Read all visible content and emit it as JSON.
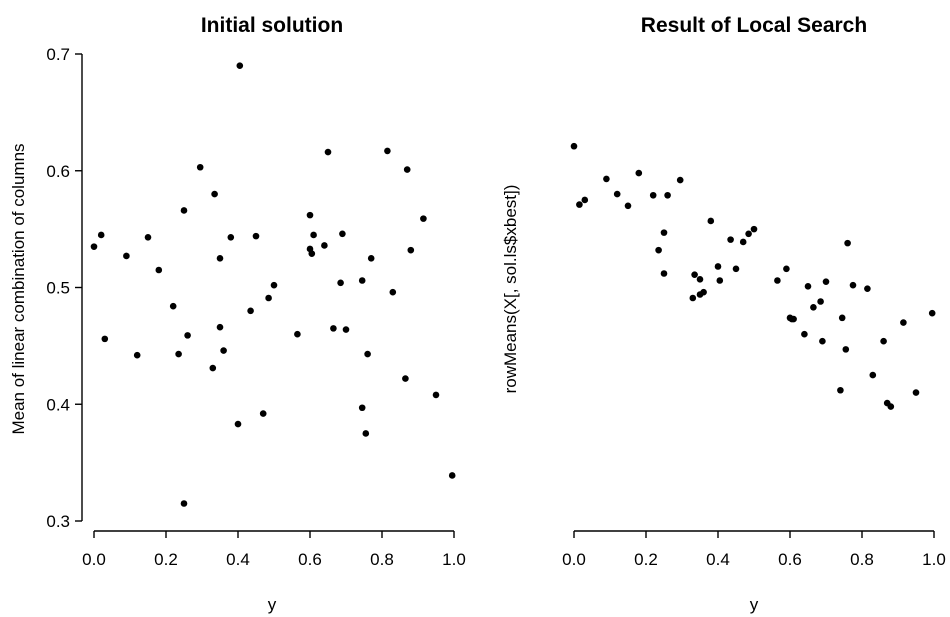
{
  "chart_data": [
    {
      "type": "scatter",
      "title": "Initial solution",
      "xlabel": "y",
      "ylabel": "Mean of linear combination of columns",
      "xlim": [
        0.0,
        1.0
      ],
      "ylim": [
        0.3,
        0.7
      ],
      "xticks": [
        "0.0",
        "0.2",
        "0.4",
        "0.6",
        "0.8",
        "1.0"
      ],
      "yticks": [
        "0.3",
        "0.4",
        "0.5",
        "0.6",
        "0.7"
      ],
      "show_y_axis": true,
      "grid": false,
      "points": [
        [
          0.0,
          0.535
        ],
        [
          0.02,
          0.545
        ],
        [
          0.03,
          0.456
        ],
        [
          0.09,
          0.527
        ],
        [
          0.12,
          0.442
        ],
        [
          0.15,
          0.543
        ],
        [
          0.18,
          0.515
        ],
        [
          0.22,
          0.484
        ],
        [
          0.235,
          0.443
        ],
        [
          0.25,
          0.566
        ],
        [
          0.25,
          0.315
        ],
        [
          0.26,
          0.459
        ],
        [
          0.295,
          0.603
        ],
        [
          0.33,
          0.431
        ],
        [
          0.335,
          0.58
        ],
        [
          0.35,
          0.466
        ],
        [
          0.35,
          0.525
        ],
        [
          0.36,
          0.446
        ],
        [
          0.38,
          0.543
        ],
        [
          0.4,
          0.383
        ],
        [
          0.405,
          0.69
        ],
        [
          0.435,
          0.48
        ],
        [
          0.45,
          0.544
        ],
        [
          0.47,
          0.392
        ],
        [
          0.485,
          0.491
        ],
        [
          0.5,
          0.502
        ],
        [
          0.565,
          0.46
        ],
        [
          0.6,
          0.533
        ],
        [
          0.6,
          0.562
        ],
        [
          0.605,
          0.529
        ],
        [
          0.61,
          0.545
        ],
        [
          0.64,
          0.536
        ],
        [
          0.65,
          0.616
        ],
        [
          0.665,
          0.465
        ],
        [
          0.685,
          0.504
        ],
        [
          0.69,
          0.546
        ],
        [
          0.7,
          0.464
        ],
        [
          0.745,
          0.506
        ],
        [
          0.745,
          0.397
        ],
        [
          0.755,
          0.375
        ],
        [
          0.76,
          0.443
        ],
        [
          0.77,
          0.525
        ],
        [
          0.815,
          0.617
        ],
        [
          0.83,
          0.496
        ],
        [
          0.865,
          0.422
        ],
        [
          0.87,
          0.601
        ],
        [
          0.88,
          0.532
        ],
        [
          0.915,
          0.559
        ],
        [
          0.95,
          0.408
        ],
        [
          0.995,
          0.339
        ]
      ]
    },
    {
      "type": "scatter",
      "title": "Result of Local Search",
      "xlabel": "y",
      "ylabel": "rowMeans(X[, sol.ls$xbest])",
      "xlim": [
        0.0,
        1.0
      ],
      "ylim": [
        0.3,
        0.7
      ],
      "xticks": [
        "0.0",
        "0.2",
        "0.4",
        "0.6",
        "0.8",
        "1.0"
      ],
      "yticks": [],
      "show_y_axis": false,
      "grid": false,
      "points": [
        [
          0.0,
          0.621
        ],
        [
          0.015,
          0.571
        ],
        [
          0.03,
          0.575
        ],
        [
          0.09,
          0.593
        ],
        [
          0.12,
          0.58
        ],
        [
          0.15,
          0.57
        ],
        [
          0.18,
          0.598
        ],
        [
          0.22,
          0.579
        ],
        [
          0.235,
          0.532
        ],
        [
          0.25,
          0.547
        ],
        [
          0.25,
          0.512
        ],
        [
          0.26,
          0.579
        ],
        [
          0.295,
          0.592
        ],
        [
          0.33,
          0.491
        ],
        [
          0.335,
          0.511
        ],
        [
          0.35,
          0.507
        ],
        [
          0.35,
          0.494
        ],
        [
          0.36,
          0.496
        ],
        [
          0.38,
          0.557
        ],
        [
          0.4,
          0.518
        ],
        [
          0.405,
          0.506
        ],
        [
          0.435,
          0.541
        ],
        [
          0.45,
          0.516
        ],
        [
          0.47,
          0.539
        ],
        [
          0.485,
          0.546
        ],
        [
          0.5,
          0.55
        ],
        [
          0.565,
          0.506
        ],
        [
          0.59,
          0.516
        ],
        [
          0.6,
          0.474
        ],
        [
          0.605,
          0.473
        ],
        [
          0.61,
          0.473
        ],
        [
          0.64,
          0.46
        ],
        [
          0.65,
          0.501
        ],
        [
          0.665,
          0.483
        ],
        [
          0.685,
          0.488
        ],
        [
          0.69,
          0.454
        ],
        [
          0.7,
          0.505
        ],
        [
          0.74,
          0.412
        ],
        [
          0.745,
          0.474
        ],
        [
          0.755,
          0.447
        ],
        [
          0.76,
          0.538
        ],
        [
          0.775,
          0.502
        ],
        [
          0.815,
          0.499
        ],
        [
          0.83,
          0.425
        ],
        [
          0.86,
          0.454
        ],
        [
          0.87,
          0.401
        ],
        [
          0.88,
          0.398
        ],
        [
          0.915,
          0.47
        ],
        [
          0.95,
          0.41
        ],
        [
          0.995,
          0.478
        ]
      ]
    }
  ]
}
